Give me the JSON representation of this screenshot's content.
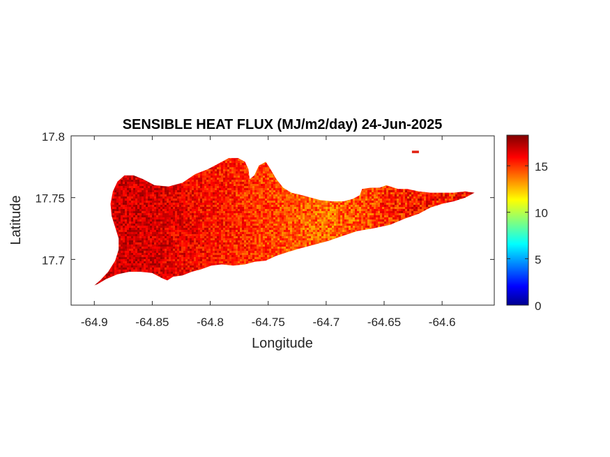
{
  "chart_data": {
    "type": "heatmap",
    "title": "SENSIBLE HEAT FLUX (MJ/m2/day) 24-Jun-2025",
    "xlabel": "Longitude",
    "ylabel": "Latitude",
    "xlim": [
      -64.92,
      -64.555
    ],
    "ylim": [
      17.663,
      17.8
    ],
    "xticks": [
      -64.9,
      -64.85,
      -64.8,
      -64.75,
      -64.7,
      -64.65,
      -64.6
    ],
    "xtick_labels": [
      "-64.9",
      "-64.85",
      "-64.8",
      "-64.75",
      "-64.7",
      "-64.65",
      "-64.6"
    ],
    "yticks": [
      17.7,
      17.75,
      17.8
    ],
    "ytick_labels": [
      "17.7",
      "17.75",
      "17.8"
    ],
    "colorbar": {
      "colormap": "jet",
      "min": 0,
      "max": 18.3,
      "ticks": [
        0,
        5,
        10,
        15
      ],
      "tick_labels": [
        "0",
        "5",
        "10",
        "15"
      ]
    },
    "grid": false,
    "region": {
      "west_value_range": [
        15.5,
        18
      ],
      "central_value_range": [
        12.5,
        15.5
      ],
      "east_value_range": [
        14,
        17.5
      ],
      "outline_lonlat": [
        [
          -64.9,
          17.679
        ],
        [
          -64.895,
          17.683
        ],
        [
          -64.888,
          17.69
        ],
        [
          -64.882,
          17.699
        ],
        [
          -64.879,
          17.708
        ],
        [
          -64.879,
          17.717
        ],
        [
          -64.882,
          17.726
        ],
        [
          -64.885,
          17.735
        ],
        [
          -64.886,
          17.745
        ],
        [
          -64.884,
          17.755
        ],
        [
          -64.88,
          17.763
        ],
        [
          -64.874,
          17.768
        ],
        [
          -64.866,
          17.768
        ],
        [
          -64.858,
          17.765
        ],
        [
          -64.848,
          17.76
        ],
        [
          -64.836,
          17.759
        ],
        [
          -64.824,
          17.762
        ],
        [
          -64.813,
          17.769
        ],
        [
          -64.802,
          17.773
        ],
        [
          -64.792,
          17.778
        ],
        [
          -64.784,
          17.782
        ],
        [
          -64.776,
          17.782
        ],
        [
          -64.77,
          17.779
        ],
        [
          -64.767,
          17.773
        ],
        [
          -64.766,
          17.765
        ],
        [
          -64.762,
          17.768
        ],
        [
          -64.758,
          17.776
        ],
        [
          -64.752,
          17.779
        ],
        [
          -64.748,
          17.773
        ],
        [
          -64.743,
          17.765
        ],
        [
          -64.737,
          17.758
        ],
        [
          -64.73,
          17.754
        ],
        [
          -64.721,
          17.752
        ],
        [
          -64.713,
          17.75
        ],
        [
          -64.705,
          17.748
        ],
        [
          -64.695,
          17.747
        ],
        [
          -64.685,
          17.747
        ],
        [
          -64.677,
          17.749
        ],
        [
          -64.671,
          17.752
        ],
        [
          -64.669,
          17.757
        ],
        [
          -64.662,
          17.758
        ],
        [
          -64.654,
          17.758
        ],
        [
          -64.648,
          17.76
        ],
        [
          -64.638,
          17.757
        ],
        [
          -64.63,
          17.757
        ],
        [
          -64.62,
          17.755
        ],
        [
          -64.61,
          17.754
        ],
        [
          -64.6,
          17.754
        ],
        [
          -64.59,
          17.754
        ],
        [
          -64.58,
          17.755
        ],
        [
          -64.572,
          17.754
        ],
        [
          -64.58,
          17.75
        ],
        [
          -64.59,
          17.747
        ],
        [
          -64.6,
          17.745
        ],
        [
          -64.61,
          17.742
        ],
        [
          -64.62,
          17.737
        ],
        [
          -64.632,
          17.733
        ],
        [
          -64.645,
          17.728
        ],
        [
          -64.66,
          17.725
        ],
        [
          -64.673,
          17.723
        ],
        [
          -64.686,
          17.719
        ],
        [
          -64.698,
          17.715
        ],
        [
          -64.71,
          17.712
        ],
        [
          -64.722,
          17.709
        ],
        [
          -64.733,
          17.706
        ],
        [
          -64.743,
          17.703
        ],
        [
          -64.752,
          17.699
        ],
        [
          -64.762,
          17.698
        ],
        [
          -64.77,
          17.696
        ],
        [
          -64.78,
          17.695
        ],
        [
          -64.79,
          17.696
        ],
        [
          -64.799,
          17.695
        ],
        [
          -64.808,
          17.692
        ],
        [
          -64.816,
          17.69
        ],
        [
          -64.824,
          17.687
        ],
        [
          -64.832,
          17.686
        ],
        [
          -64.837,
          17.683
        ],
        [
          -64.842,
          17.685
        ],
        [
          -64.85,
          17.689
        ],
        [
          -64.86,
          17.69
        ],
        [
          -64.87,
          17.69
        ],
        [
          -64.88,
          17.688
        ],
        [
          -64.89,
          17.684
        ],
        [
          -64.897,
          17.68
        ]
      ],
      "islet_lonlat": [
        [
          -64.626,
          17.788
        ],
        [
          -64.62,
          17.788
        ],
        [
          -64.62,
          17.786
        ],
        [
          -64.626,
          17.786
        ]
      ]
    }
  }
}
